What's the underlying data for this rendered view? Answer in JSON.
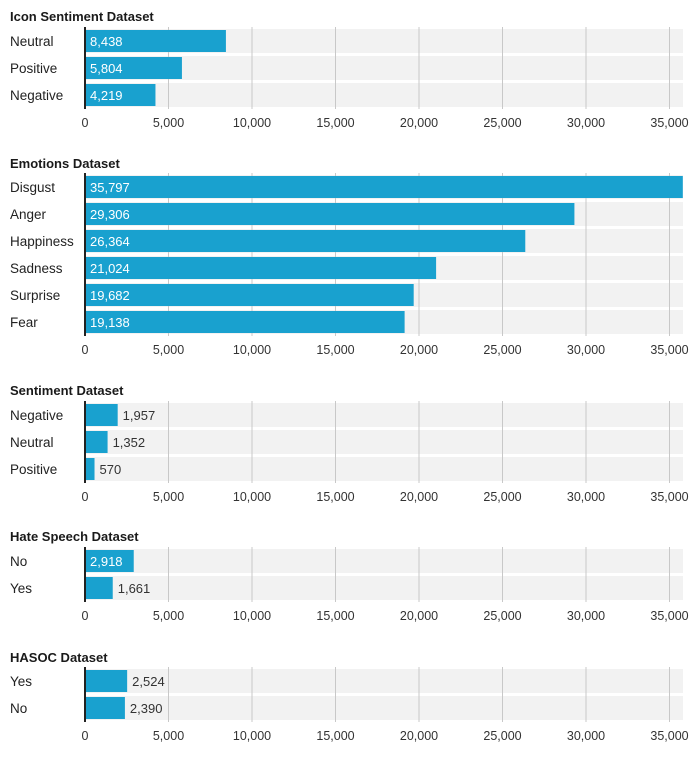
{
  "colors": {
    "bar": "#19a1cf",
    "row_bg": "#f2f2f2",
    "grid": "#c8c8c8",
    "axis": "#222222"
  },
  "chart_data": [
    {
      "type": "bar",
      "orientation": "horizontal",
      "title": "Icon Sentiment Dataset",
      "categories": [
        "Neutral",
        "Positive",
        "Negative"
      ],
      "values": [
        8438,
        5804,
        4219
      ],
      "value_labels": [
        "8,438",
        "5,804",
        "4,219"
      ],
      "xlim": [
        0,
        36500
      ],
      "ticks": [
        0,
        5000,
        10000,
        15000,
        20000,
        25000,
        30000,
        35000
      ],
      "tick_labels": [
        "0",
        "5,000",
        "10,000",
        "15,000",
        "20,000",
        "25,000",
        "30,000",
        "35,000"
      ]
    },
    {
      "type": "bar",
      "orientation": "horizontal",
      "title": "Emotions Dataset",
      "categories": [
        "Disgust",
        "Anger",
        "Happiness",
        "Sadness",
        "Surprise",
        "Fear"
      ],
      "values": [
        35797,
        29306,
        26364,
        21024,
        19682,
        19138
      ],
      "value_labels": [
        "35,797",
        "29,306",
        "26,364",
        "21,024",
        "19,682",
        "19,138"
      ],
      "xlim": [
        0,
        36500
      ],
      "ticks": [
        0,
        5000,
        10000,
        15000,
        20000,
        25000,
        30000,
        35000
      ],
      "tick_labels": [
        "0",
        "5,000",
        "10,000",
        "15,000",
        "20,000",
        "25,000",
        "30,000",
        "35,000"
      ]
    },
    {
      "type": "bar",
      "orientation": "horizontal",
      "title": "Sentiment Dataset",
      "categories": [
        "Negative",
        "Neutral",
        "Positive"
      ],
      "values": [
        1957,
        1352,
        570
      ],
      "value_labels": [
        "1,957",
        "1,352",
        "570"
      ],
      "xlim": [
        0,
        36500
      ],
      "ticks": [
        0,
        5000,
        10000,
        15000,
        20000,
        25000,
        30000,
        35000
      ],
      "tick_labels": [
        "0",
        "5,000",
        "10,000",
        "15,000",
        "20,000",
        "25,000",
        "30,000",
        "35,000"
      ]
    },
    {
      "type": "bar",
      "orientation": "horizontal",
      "title": "Hate Speech Dataset",
      "categories": [
        "No",
        "Yes"
      ],
      "values": [
        2918,
        1661
      ],
      "value_labels": [
        "2,918",
        "1,661"
      ],
      "xlim": [
        0,
        36500
      ],
      "ticks": [
        0,
        5000,
        10000,
        15000,
        20000,
        25000,
        30000,
        35000
      ],
      "tick_labels": [
        "0",
        "5,000",
        "10,000",
        "15,000",
        "20,000",
        "25,000",
        "30,000",
        "35,000"
      ]
    },
    {
      "type": "bar",
      "orientation": "horizontal",
      "title": "HASOC Dataset",
      "categories": [
        "Yes",
        "No"
      ],
      "values": [
        2524,
        2390
      ],
      "value_labels": [
        "2,524",
        "2,390"
      ],
      "xlim": [
        0,
        36500
      ],
      "ticks": [
        0,
        5000,
        10000,
        15000,
        20000,
        25000,
        30000,
        35000
      ],
      "tick_labels": [
        "0",
        "5,000",
        "10,000",
        "15,000",
        "20,000",
        "25,000",
        "30,000",
        "35,000"
      ]
    }
  ]
}
